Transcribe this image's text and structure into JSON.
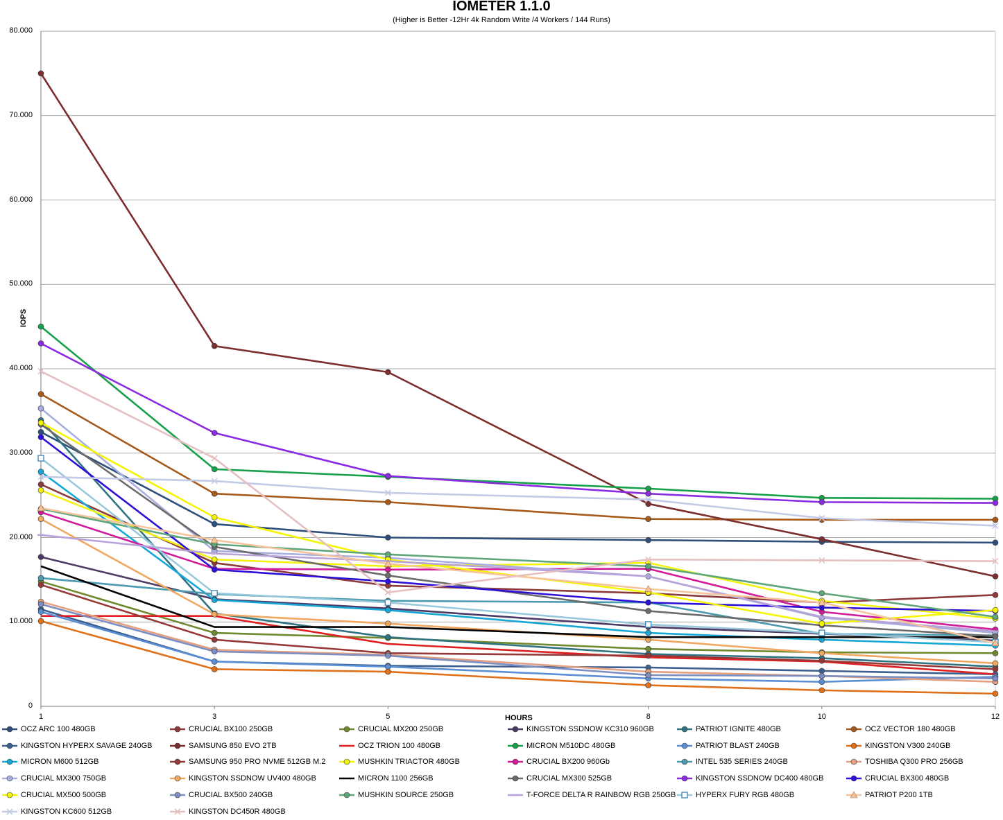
{
  "chart_data": {
    "type": "line",
    "title": "IOMETER 1.1.0",
    "subtitle": "(Higher is Better -12Hr 4k Random Write /4 Workers / 144 Runs)",
    "xlabel": "HOURS",
    "ylabel": "IOPS",
    "x": [
      1,
      3,
      5,
      8,
      10,
      12
    ],
    "x_tick_labels": [
      "1",
      "3",
      "5",
      "8",
      "10",
      "12"
    ],
    "ylim": [
      0,
      80000
    ],
    "y_tick_labels": [
      "0",
      "10.000",
      "20.000",
      "30.000",
      "40.000",
      "50.000",
      "60.000",
      "70.000",
      "80.000"
    ],
    "grid": "horizontal",
    "legend_position": "bottom",
    "series": [
      {
        "name": "OCZ ARC 100 480GB",
        "color": "#2e4f7c",
        "marker": "circle",
        "values": [
          32500,
          21600,
          20000,
          19700,
          19500,
          19400
        ]
      },
      {
        "name": "CRUCIAL BX100 250GB",
        "color": "#8c3a3a",
        "marker": "circle",
        "values": [
          26300,
          17000,
          14300,
          13400,
          12300,
          13200
        ]
      },
      {
        "name": "CRUCIAL MX200 250GB",
        "color": "#6f8a2e",
        "marker": "circle",
        "values": [
          14800,
          8700,
          8100,
          6800,
          6400,
          6300
        ]
      },
      {
        "name": "KINGSTON SSDNOW KC310 960GB",
        "color": "#4b3a66",
        "marker": "circle",
        "values": [
          17700,
          12700,
          11600,
          9400,
          8600,
          7800
        ]
      },
      {
        "name": "PATRIOT IGNITE 480GB",
        "color": "#2f7382",
        "marker": "circle",
        "values": [
          33900,
          11000,
          8200,
          6200,
          5700,
          4700
        ]
      },
      {
        "name": "OCZ VECTOR 180 480GB",
        "color": "#a65a1c",
        "marker": "circle",
        "values": [
          37000,
          25200,
          24200,
          22200,
          22100,
          22100
        ]
      },
      {
        "name": "KINGSTON HYPERX SAVAGE 240GB",
        "color": "#3c5f90",
        "marker": "circle",
        "values": [
          11500,
          5300,
          4800,
          4600,
          4200,
          3800
        ]
      },
      {
        "name": "SAMSUNG 850 EVO 2TB",
        "color": "#7c2d2d",
        "marker": "circle",
        "values": [
          75000,
          42700,
          39600,
          24000,
          19800,
          15400
        ]
      },
      {
        "name": "OCZ TRION 100 480GB",
        "color": "#e02020",
        "marker": "none",
        "values": [
          10700,
          10700,
          7400,
          5800,
          5300,
          3800
        ]
      },
      {
        "name": "MICRON M510DC 480GB",
        "color": "#16a04a",
        "marker": "circle",
        "values": [
          45000,
          28100,
          27200,
          25800,
          24700,
          24600
        ]
      },
      {
        "name": "PATRIOT BLAST 240GB",
        "color": "#5b8fd4",
        "marker": "circle",
        "values": [
          11200,
          5300,
          4700,
          3300,
          2900,
          3500
        ]
      },
      {
        "name": "KINGSTON V300 240GB",
        "color": "#e0701a",
        "marker": "circle",
        "values": [
          10100,
          4400,
          4100,
          2500,
          1900,
          1500
        ]
      },
      {
        "name": "MICRON M600 512GB",
        "color": "#17a7d6",
        "marker": "circle",
        "values": [
          27800,
          12600,
          11400,
          8700,
          7900,
          7200
        ]
      },
      {
        "name": "SAMSUNG 950 PRO NVME 512GB M.2",
        "color": "#973838",
        "marker": "circle",
        "values": [
          14400,
          7900,
          6300,
          6000,
          5400,
          4400
        ]
      },
      {
        "name": "MUSHKIN TRIACTOR 480GB",
        "color": "#f2f20e",
        "marker": "circle",
        "values": [
          25600,
          17400,
          16600,
          17000,
          12500,
          10400
        ]
      },
      {
        "name": "CRUCIAL BX200 960Gb",
        "color": "#d01b9a",
        "marker": "circle",
        "values": [
          23000,
          16300,
          16200,
          16300,
          11200,
          9100
        ]
      },
      {
        "name": "INTEL 535 SERIES 240GB",
        "color": "#4a9ab0",
        "marker": "circle",
        "values": [
          15200,
          13300,
          12500,
          12300,
          8600,
          8400
        ]
      },
      {
        "name": "TOSHIBA Q300 PRO 256GB",
        "color": "#e4a080",
        "marker": "circle",
        "values": [
          12400,
          6700,
          6100,
          4100,
          3600,
          2900
        ]
      },
      {
        "name": "CRUCIAL MX300 750GB",
        "color": "#a8aee0",
        "marker": "circle",
        "values": [
          35300,
          18400,
          17600,
          15400,
          10500,
          8700
        ]
      },
      {
        "name": "KINGSTON SSDNOW UV400 480GB",
        "color": "#f0a860",
        "marker": "circle",
        "values": [
          22200,
          10900,
          9800,
          7900,
          6300,
          5100
        ]
      },
      {
        "name": "MICRON 1100 256GB",
        "color": "#000000",
        "marker": "none",
        "values": [
          16600,
          9400,
          9400,
          8200,
          8200,
          8200
        ]
      },
      {
        "name": "CRUCIAL MX300 525GB",
        "color": "#6b6b6b",
        "marker": "circle",
        "values": [
          33400,
          18900,
          15500,
          11300,
          9600,
          8300
        ]
      },
      {
        "name": "KINGSTON SSDNOW DC400 480GB",
        "color": "#8a2be2",
        "marker": "circle",
        "values": [
          43000,
          32400,
          27300,
          25200,
          24200,
          24100
        ]
      },
      {
        "name": "CRUCIAL BX300 480GB",
        "color": "#2b10d8",
        "marker": "circle",
        "values": [
          31900,
          16200,
          14800,
          12300,
          11700,
          11300
        ]
      },
      {
        "name": "CRUCIAL MX500 500GB",
        "color": "#f5f500",
        "marker": "circle",
        "values": [
          33600,
          22400,
          17400,
          13500,
          9800,
          11400
        ]
      },
      {
        "name": "CRUCIAL BX500 240GB",
        "color": "#7d8fc2",
        "marker": "circle",
        "values": [
          12100,
          6500,
          6000,
          3700,
          3600,
          3300
        ]
      },
      {
        "name": "MUSHKIN SOURCE 250GB",
        "color": "#5fa67a",
        "marker": "circle",
        "values": [
          23400,
          19200,
          18000,
          16600,
          13400,
          10600
        ]
      },
      {
        "name": "T-FORCE DELTA R RAINBOW RGB 250GB",
        "color": "#b7a3d9",
        "marker": "dash",
        "values": [
          20300,
          18100,
          17200,
          15400,
          10600,
          8900
        ]
      },
      {
        "name": "HYPERX FURY RGB 480GB",
        "color": "#98c8dc",
        "marker": "square",
        "values": [
          29400,
          13400,
          12300,
          9700,
          8700,
          7600
        ]
      },
      {
        "name": "PATRIOT P200 1TB",
        "color": "#f5c49c",
        "marker": "triangle",
        "values": [
          23500,
          19700,
          16900,
          13900,
          12300,
          7500
        ]
      },
      {
        "name": "KINGSTON KC600 512GB",
        "color": "#c2cae6",
        "marker": "x",
        "values": [
          27200,
          26700,
          25300,
          24500,
          22300,
          21400
        ]
      },
      {
        "name": "KINGSTON DC450R 480GB",
        "color": "#e6c0c0",
        "marker": "x",
        "values": [
          39700,
          29400,
          13500,
          17400,
          17300,
          17200
        ]
      }
    ]
  }
}
